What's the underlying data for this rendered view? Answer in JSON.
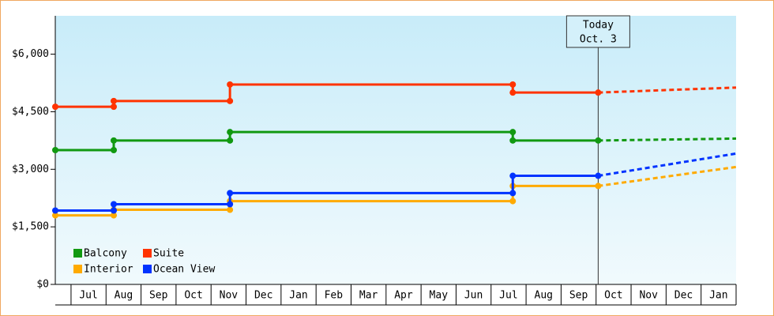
{
  "chart_data": {
    "type": "step-line",
    "categories": [
      "Jul",
      "Aug",
      "Sep",
      "Oct",
      "Nov",
      "Dec",
      "Jan",
      "Feb",
      "Mar",
      "Apr",
      "May",
      "Jun",
      "Jul",
      "Aug",
      "Sep",
      "Oct",
      "Nov",
      "Dec",
      "Jan"
    ],
    "x": [
      -0.95,
      0.72,
      0.72,
      4.04,
      4.04,
      12.12,
      12.12,
      14.56,
      18.5
    ],
    "xlim": [
      -0.95,
      18.5
    ],
    "dashed_after_index": 7,
    "ylim": [
      0,
      7000
    ],
    "yticks": [
      {
        "value": 0,
        "label": "$0"
      },
      {
        "value": 1500,
        "label": "$1,500"
      },
      {
        "value": 3000,
        "label": "$3,000"
      },
      {
        "value": 4500,
        "label": "$4,500"
      },
      {
        "value": 6000,
        "label": "$6,000"
      }
    ],
    "series": [
      {
        "name": "Balcony",
        "color": "#119911",
        "values": [
          3500,
          3500,
          3750,
          3750,
          3970,
          3970,
          3750,
          3750,
          3800
        ]
      },
      {
        "name": "Suite",
        "color": "#ff3300",
        "values": [
          4630,
          4630,
          4780,
          4780,
          5210,
          5210,
          5000,
          5000,
          5130
        ]
      },
      {
        "name": "Interior",
        "color": "#ffaa00",
        "values": [
          1800,
          1800,
          1945,
          1945,
          2170,
          2170,
          2565,
          2565,
          3060
        ]
      },
      {
        "name": "Ocean View",
        "color": "#0033ff",
        "values": [
          1925,
          1925,
          2090,
          2090,
          2380,
          2380,
          2830,
          2830,
          3410
        ]
      }
    ],
    "annotation": {
      "x": 14.56,
      "lines": [
        "Today",
        "Oct. 3"
      ]
    }
  }
}
